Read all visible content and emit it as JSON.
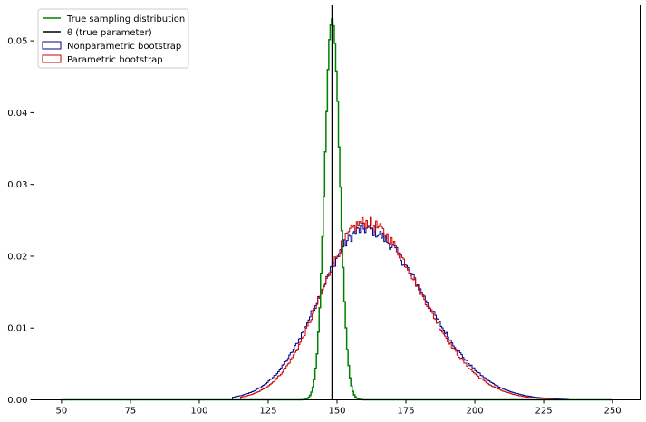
{
  "chart_data": {
    "type": "histogram",
    "title": "",
    "xlabel": "",
    "ylabel": "",
    "xlim": [
      40,
      260
    ],
    "ylim": [
      0,
      0.055
    ],
    "xticks": [
      50,
      75,
      100,
      125,
      150,
      175,
      200,
      225,
      250
    ],
    "yticks": [
      0.0,
      0.01,
      0.02,
      0.03,
      0.04,
      0.05
    ],
    "xtick_labels": [
      "50",
      "75",
      "100",
      "125",
      "150",
      "175",
      "200",
      "225",
      "250"
    ],
    "ytick_labels": [
      "0.00",
      "0.01",
      "0.02",
      "0.03",
      "0.04",
      "0.05"
    ],
    "grid": false,
    "legend_position": "top-left",
    "theta_line": {
      "name": "θ (true parameter)",
      "x": 148.2,
      "color": "#000000"
    },
    "series": [
      {
        "name": "True sampling distribution",
        "style": "step",
        "color": "#008000",
        "line_width": 1.5,
        "bin_width": 0.5,
        "range": [
          50,
          250
        ],
        "density_shape": {
          "kind": "normal",
          "mean": 148.3,
          "sd": 2.7,
          "peak": 0.0535
        }
      },
      {
        "name": "Nonparametric bootstrap",
        "style": "step",
        "color": "#00008b",
        "line_width": 1,
        "bin_width": 0.5,
        "range": [
          112,
          234
        ],
        "density_shape": {
          "kind": "skew",
          "mode": 160,
          "sd_left": 16.5,
          "sd_right": 21.5,
          "peak": 0.0238
        }
      },
      {
        "name": "Parametric bootstrap",
        "style": "step",
        "color": "#cc0000",
        "line_width": 1,
        "bin_width": 0.5,
        "range": [
          115,
          229
        ],
        "density_shape": {
          "kind": "skew",
          "mode": 160,
          "sd_left": 15.5,
          "sd_right": 20.5,
          "peak": 0.0247
        }
      }
    ]
  }
}
